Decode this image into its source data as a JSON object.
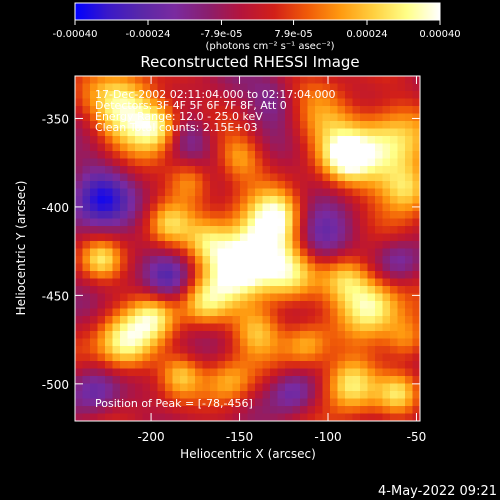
{
  "colors": {
    "background": "#000000",
    "foreground": "#ffffff",
    "colormap": [
      "#0000ff",
      "#3a18c8",
      "#5a28a8",
      "#7a2aa0",
      "#8a1f6e",
      "#b4143c",
      "#d22018",
      "#f05a08",
      "#ff9a10",
      "#ffd040",
      "#ffff88",
      "#ffffff"
    ]
  },
  "colorbar": {
    "tick_labels": [
      "-0.00040",
      "-0.00024",
      "-7.9e-05",
      "7.9e-05",
      "0.00024",
      "0.00040"
    ],
    "tick_values": [
      -0.0004,
      -0.00024,
      -7.9e-05,
      7.9e-05,
      0.00024,
      0.0004
    ],
    "range": [
      -0.0004,
      0.0004
    ],
    "unit_label": "(photons cm⁻² s⁻¹ asec⁻²)"
  },
  "chart_data": {
    "type": "heatmap",
    "title": "Reconstructed RHESSI Image",
    "xlabel": "Heliocentric X (arcsec)",
    "ylabel": "Heliocentric Y (arcsec)",
    "xlim": [
      -243,
      -48
    ],
    "ylim": [
      -521,
      -326
    ],
    "x_ticks": [
      -200,
      -150,
      -100,
      -50
    ],
    "y_ticks": [
      -350,
      -400,
      -450,
      -500
    ],
    "grid": false,
    "annotations": [
      "17-Dec-2002 02:11:04.000 to 02:17:04.000",
      "Detectors: 3F 4F 5F 6F 7F 8F, Att 0",
      "Energy Range: 12.0 - 25.0 keV",
      "Clean    Total counts: 2.15E+03"
    ],
    "peak_label": "Position of Peak = [-78,-456]",
    "peak_position": [
      -78,
      -456
    ],
    "blobs": [
      {
        "x": -214,
        "y": -345,
        "v": 0.95,
        "r": 14
      },
      {
        "x": -195,
        "y": -355,
        "v": 0.75,
        "r": 10
      },
      {
        "x": -100,
        "y": -352,
        "v": 0.55,
        "r": 14
      },
      {
        "x": -68,
        "y": -368,
        "v": 0.9,
        "r": 16
      },
      {
        "x": -90,
        "y": -372,
        "v": 0.65,
        "r": 9
      },
      {
        "x": -55,
        "y": -390,
        "v": 0.7,
        "r": 10
      },
      {
        "x": -178,
        "y": -385,
        "v": 0.6,
        "r": 9
      },
      {
        "x": -150,
        "y": -372,
        "v": 0.5,
        "r": 9
      },
      {
        "x": -140,
        "y": -420,
        "v": 1.0,
        "r": 14
      },
      {
        "x": -152,
        "y": -435,
        "v": 0.85,
        "r": 12
      },
      {
        "x": -128,
        "y": -405,
        "v": 0.7,
        "r": 10
      },
      {
        "x": -122,
        "y": -440,
        "v": 0.75,
        "r": 12
      },
      {
        "x": -168,
        "y": -420,
        "v": 0.55,
        "r": 9
      },
      {
        "x": -190,
        "y": -410,
        "v": 0.55,
        "r": 9
      },
      {
        "x": -170,
        "y": -455,
        "v": 0.7,
        "r": 10
      },
      {
        "x": -198,
        "y": -462,
        "v": 0.6,
        "r": 9
      },
      {
        "x": -228,
        "y": -430,
        "v": 0.6,
        "r": 8
      },
      {
        "x": -215,
        "y": -478,
        "v": 0.95,
        "r": 12
      },
      {
        "x": -75,
        "y": -455,
        "v": 0.9,
        "r": 12
      },
      {
        "x": -90,
        "y": -440,
        "v": 0.7,
        "r": 10
      },
      {
        "x": -55,
        "y": -475,
        "v": 0.6,
        "r": 9
      },
      {
        "x": -140,
        "y": -470,
        "v": 0.6,
        "r": 10
      },
      {
        "x": -112,
        "y": -478,
        "v": 0.55,
        "r": 9
      },
      {
        "x": -155,
        "y": -500,
        "v": 0.6,
        "r": 10
      },
      {
        "x": -183,
        "y": -495,
        "v": 0.5,
        "r": 8
      },
      {
        "x": -88,
        "y": -500,
        "v": 0.95,
        "r": 11
      },
      {
        "x": -60,
        "y": -505,
        "v": 0.55,
        "r": 8
      },
      {
        "x": -230,
        "y": -395,
        "v": -0.75,
        "r": 13
      },
      {
        "x": -180,
        "y": -360,
        "v": -0.5,
        "r": 10
      },
      {
        "x": -105,
        "y": -420,
        "v": -0.6,
        "r": 12
      },
      {
        "x": -232,
        "y": -505,
        "v": -0.55,
        "r": 10
      },
      {
        "x": -120,
        "y": -505,
        "v": -0.5,
        "r": 9
      },
      {
        "x": -60,
        "y": -430,
        "v": -0.45,
        "r": 9
      },
      {
        "x": -130,
        "y": -340,
        "v": -0.4,
        "r": 10
      },
      {
        "x": -190,
        "y": -440,
        "v": -0.45,
        "r": 9
      }
    ]
  },
  "footer": {
    "timestamp": "4-May-2022 09:21"
  }
}
